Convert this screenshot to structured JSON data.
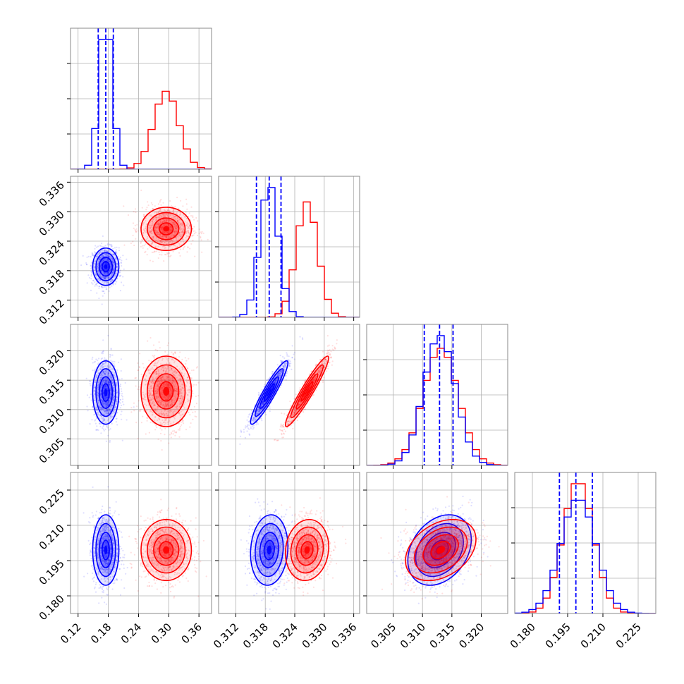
{
  "chart_data": {
    "type": "scatter",
    "subtype": "corner-plot",
    "title": "",
    "parameters": [
      {
        "ticks": [
          0.12,
          0.18,
          0.24,
          0.3,
          0.36
        ],
        "tick_labels": [
          "0.12",
          "0.18",
          "0.24",
          "0.30",
          "0.36"
        ],
        "range": [
          0.105,
          0.385
        ]
      },
      {
        "ticks": [
          0.312,
          0.318,
          0.324,
          0.33,
          0.336
        ],
        "tick_labels": [
          "0.312",
          "0.318",
          "0.324",
          "0.330",
          "0.336"
        ],
        "range": [
          0.3085,
          0.3372
        ]
      },
      {
        "ticks": [
          0.305,
          0.31,
          0.315,
          0.32
        ],
        "tick_labels": [
          "0.305",
          "0.310",
          "0.315",
          "0.320"
        ],
        "range": [
          0.3005,
          0.3245
        ]
      },
      {
        "ticks": [
          0.18,
          0.195,
          0.21,
          0.225
        ],
        "tick_labels": [
          "0.180",
          "0.195",
          "0.210",
          "0.225"
        ],
        "range": [
          0.1725,
          0.2325
        ]
      }
    ],
    "series": [
      {
        "color": "#0000ff",
        "means": [
          0.175,
          0.3188,
          0.3129,
          0.1995
        ],
        "sigmas": [
          0.013,
          0.0019,
          0.0027,
          0.0075
        ],
        "correlations": [
          [
            1,
            0,
            0,
            0
          ],
          [
            0,
            1,
            0.93,
            0.1
          ],
          [
            0,
            0.93,
            1,
            0.3
          ],
          [
            0,
            0.1,
            0.3,
            1
          ]
        ],
        "quantiles": [
          [
            0.16,
            0.175,
            0.19
          ],
          [
            0.3162,
            0.3188,
            0.3212
          ],
          [
            0.3103,
            0.3129,
            0.3152
          ],
          [
            0.1915,
            0.1985,
            0.2055
          ]
        ]
      },
      {
        "color": "#ff0000",
        "means": [
          0.295,
          0.3265,
          0.3131,
          0.1995
        ],
        "sigmas": [
          0.025,
          0.0022,
          0.003,
          0.0065
        ],
        "correlations": [
          [
            1,
            0,
            0,
            0
          ],
          [
            0,
            1,
            0.95,
            0.1
          ],
          [
            0,
            0.95,
            1,
            0.35
          ],
          [
            0,
            0.1,
            0.35,
            1
          ]
        ],
        "quantiles": []
      }
    ],
    "grid": true,
    "legend": "none"
  }
}
